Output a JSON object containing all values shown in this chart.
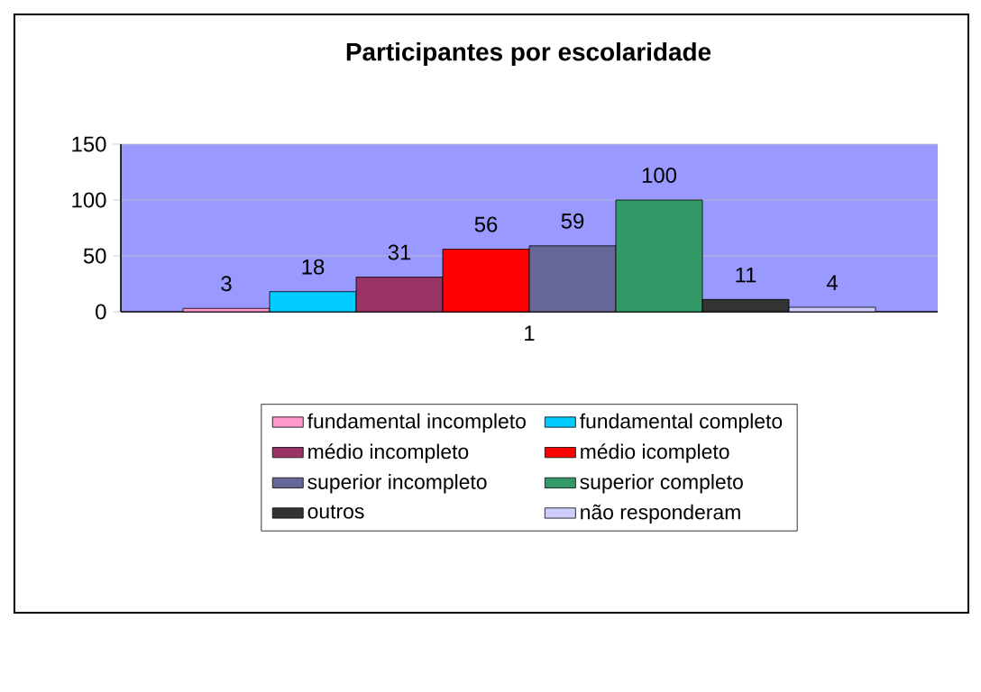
{
  "chart_data": {
    "type": "bar",
    "title": "Participantes por escolaridade",
    "categories": [
      "1"
    ],
    "series": [
      {
        "name": "fundamental incompleto",
        "color": "#ff99cc",
        "values": [
          3
        ]
      },
      {
        "name": "fundamental completo",
        "color": "#00ccff",
        "values": [
          18
        ]
      },
      {
        "name": "médio incompleto",
        "color": "#993366",
        "values": [
          31
        ]
      },
      {
        "name": "médio icompleto",
        "color": "#ff0000",
        "values": [
          56
        ]
      },
      {
        "name": "superior incompleto",
        "color": "#666699",
        "values": [
          59
        ]
      },
      {
        "name": "superior completo",
        "color": "#339966",
        "values": [
          100
        ]
      },
      {
        "name": "outros",
        "color": "#333333",
        "values": [
          11
        ]
      },
      {
        "name": "não responderam",
        "color": "#ccccff",
        "values": [
          4
        ]
      }
    ],
    "ylim": [
      0,
      150
    ],
    "yticks": [
      0,
      50,
      100,
      150
    ],
    "grid": "y",
    "legend": "bottom",
    "data_labels": true
  }
}
